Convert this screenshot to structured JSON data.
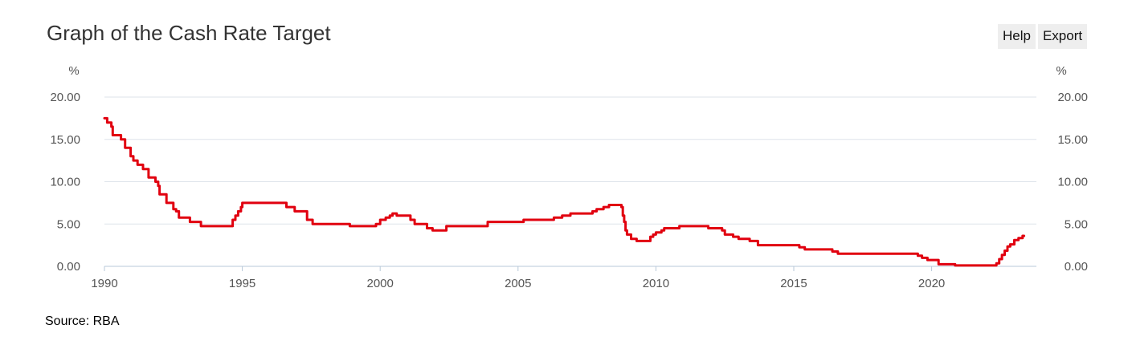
{
  "header": {
    "title": "Graph of the Cash Rate Target"
  },
  "toolbar": {
    "help_label": "Help",
    "export_label": "Export"
  },
  "footer": {
    "source": "Source: RBA"
  },
  "chart_data": {
    "type": "line",
    "title": "Graph of the Cash Rate Target",
    "ylabel_left": "%",
    "ylabel_right": "%",
    "ylim": [
      0,
      20
    ],
    "yticks": [
      "0.00",
      "5.00",
      "10.00",
      "15.00",
      "20.00"
    ],
    "xlim": [
      1990.0,
      2023.8
    ],
    "xticks": [
      "1990",
      "1995",
      "2000",
      "2005",
      "2010",
      "2015",
      "2020"
    ],
    "grid": true,
    "colors": {
      "series": "#e1000f",
      "grid": "#dde3ea",
      "axis": "#b8c9d9"
    },
    "series": [
      {
        "step": true,
        "x": [
          1990.0,
          1990.1,
          1990.25,
          1990.3,
          1990.6,
          1990.75,
          1990.95,
          1991.05,
          1991.2,
          1991.4,
          1991.6,
          1991.85,
          1991.95,
          1992.0,
          1992.25,
          1992.5,
          1992.6,
          1992.7,
          1993.1,
          1993.5,
          1994.65,
          1994.75,
          1994.85,
          1994.95,
          1995.0,
          1996.6,
          1996.9,
          1997.35,
          1997.55,
          1998.9,
          1999.85,
          2000.0,
          2000.2,
          2000.35,
          2000.45,
          2000.6,
          2001.1,
          2001.25,
          2001.7,
          2001.9,
          2002.4,
          2003.9,
          2005.2,
          2006.3,
          2006.6,
          2006.9,
          2007.7,
          2007.85,
          2008.1,
          2008.3,
          2008.75,
          2008.8,
          2008.85,
          2008.9,
          2008.95,
          2009.1,
          2009.3,
          2009.8,
          2009.9,
          2010.0,
          2010.2,
          2010.3,
          2010.4,
          2010.85,
          2011.9,
          2012.4,
          2012.5,
          2012.8,
          2013.0,
          2013.4,
          2013.7,
          2015.2,
          2015.4,
          2016.4,
          2016.6,
          2019.5,
          2019.65,
          2019.85,
          2020.25,
          2020.85,
          2022.35,
          2022.45,
          2022.55,
          2022.65,
          2022.75,
          2022.85,
          2023.0,
          2023.15,
          2023.3
        ],
        "values": [
          17.5,
          17.0,
          16.5,
          15.5,
          15.0,
          14.0,
          13.0,
          12.5,
          12.0,
          11.5,
          10.5,
          10.0,
          9.5,
          8.5,
          7.5,
          6.75,
          6.5,
          5.75,
          5.25,
          4.75,
          5.5,
          6.0,
          6.5,
          7.0,
          7.5,
          7.0,
          6.5,
          5.5,
          5.0,
          4.75,
          5.0,
          5.5,
          5.75,
          6.0,
          6.25,
          6.0,
          5.5,
          5.0,
          4.5,
          4.25,
          4.75,
          5.25,
          5.5,
          5.75,
          6.0,
          6.25,
          6.5,
          6.75,
          7.0,
          7.25,
          7.0,
          6.0,
          5.25,
          4.25,
          3.75,
          3.25,
          3.0,
          3.5,
          3.75,
          4.0,
          4.25,
          4.5,
          4.5,
          4.75,
          4.5,
          4.25,
          3.75,
          3.5,
          3.25,
          3.0,
          2.5,
          2.25,
          2.0,
          1.75,
          1.5,
          1.25,
          1.0,
          0.75,
          0.25,
          0.1,
          0.35,
          0.85,
          1.35,
          1.85,
          2.35,
          2.6,
          3.1,
          3.35,
          3.6
        ]
      }
    ]
  }
}
